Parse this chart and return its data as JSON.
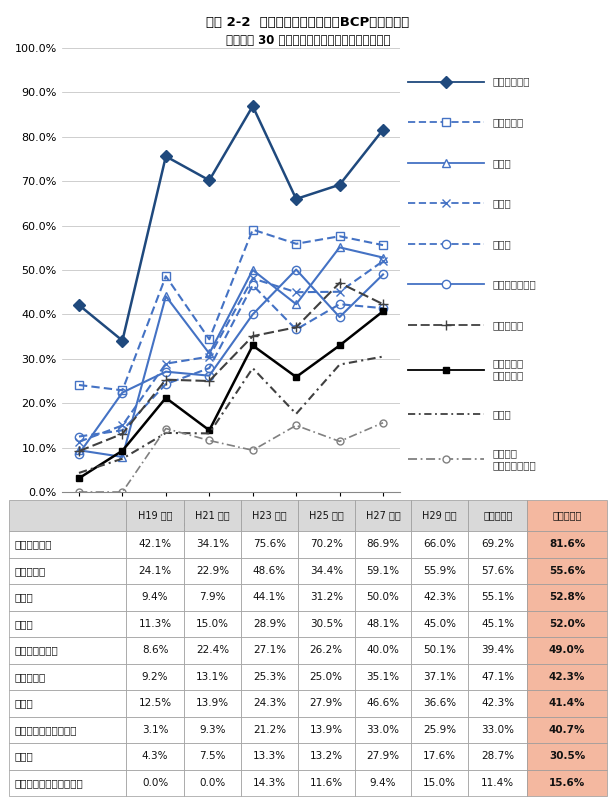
{
  "title1": "図表 2-2  業種別事業継続計画（BCP）策定状況",
  "title2": "（回答数 30 社以上で連続性のある業種を表示）",
  "x_labels": [
    "H19年度",
    "H21年度",
    "H23年度",
    "H25年度",
    "H27年度",
    "H29年度",
    "令和元年度",
    "令和３年度"
  ],
  "series": [
    {
      "name": "金融・保険業",
      "values": [
        42.1,
        34.1,
        75.6,
        70.2,
        86.9,
        66.0,
        69.2,
        81.6
      ],
      "color": "#1F497D",
      "linestyle": "-",
      "marker": "D",
      "markersize": 6,
      "linewidth": 1.8,
      "fillstyle": "full"
    },
    {
      "name": "情報通信業",
      "values": [
        24.1,
        22.9,
        48.6,
        34.4,
        59.1,
        55.9,
        57.6,
        55.6
      ],
      "color": "#4472C4",
      "linestyle": "--",
      "marker": "s",
      "markersize": 6,
      "linewidth": 1.5,
      "fillstyle": "none"
    },
    {
      "name": "建設業",
      "values": [
        9.4,
        7.9,
        44.1,
        31.2,
        50.0,
        42.3,
        55.1,
        52.8
      ],
      "color": "#4472C4",
      "linestyle": "-",
      "marker": "^",
      "markersize": 6,
      "linewidth": 1.5,
      "fillstyle": "none"
    },
    {
      "name": "製造業",
      "values": [
        11.3,
        15.0,
        28.9,
        30.5,
        48.1,
        45.0,
        45.1,
        52.0
      ],
      "color": "#4472C4",
      "linestyle": "--",
      "marker": "x",
      "markersize": 6,
      "linewidth": 1.5,
      "fillstyle": "full"
    },
    {
      "name": "卸売業",
      "values": [
        12.5,
        13.9,
        24.3,
        27.9,
        46.6,
        36.6,
        42.3,
        41.4
      ],
      "color": "#4472C4",
      "linestyle": "--",
      "marker": "o",
      "markersize": 6,
      "linewidth": 1.5,
      "fillstyle": "none"
    },
    {
      "name": "運輸業・郵便業",
      "values": [
        8.6,
        22.4,
        27.1,
        26.2,
        40.0,
        50.1,
        39.4,
        49.0
      ],
      "color": "#4472C4",
      "linestyle": "-",
      "marker": "o",
      "markersize": 6,
      "linewidth": 1.5,
      "fillstyle": "none"
    },
    {
      "name": "サービス業",
      "values": [
        9.2,
        13.1,
        25.3,
        25.0,
        35.1,
        37.1,
        47.1,
        42.3
      ],
      "color": "#404040",
      "linestyle": "--",
      "marker": "+",
      "markersize": 7,
      "linewidth": 1.5,
      "fillstyle": "full"
    },
    {
      "name": "不動産業、\n物品賃貸業",
      "values": [
        3.1,
        9.3,
        21.2,
        13.9,
        33.0,
        25.9,
        33.0,
        40.7
      ],
      "color": "#000000",
      "linestyle": "-",
      "marker": "s",
      "markersize": 4,
      "linewidth": 1.8,
      "fillstyle": "full"
    },
    {
      "name": "小売業",
      "values": [
        4.3,
        7.5,
        13.3,
        13.2,
        27.9,
        17.6,
        28.7,
        30.5
      ],
      "color": "#404040",
      "linestyle": "-.",
      "marker": "None",
      "markersize": 0,
      "linewidth": 1.5,
      "fillstyle": "full"
    },
    {
      "name": "宿泊業、\n飲食サービス業",
      "values": [
        0.0,
        0.0,
        14.3,
        11.6,
        9.4,
        15.0,
        11.4,
        15.6
      ],
      "color": "#808080",
      "linestyle": "--",
      "marker": "o",
      "markersize": 5,
      "linewidth": 1.2,
      "fillstyle": "none"
    }
  ],
  "legend_names": [
    "金融・保険業",
    "情報通信業",
    "建設業",
    "製造業",
    "卸売業",
    "運輸業・郵便業",
    "サービス業",
    "不動産業、\n物品賃貸業",
    "小売業",
    "宿泊業、\n飲食サービス業"
  ],
  "table_headers": [
    "",
    "H19 年度",
    "H21 年度",
    "H23 年度",
    "H25 年度",
    "H27 年度",
    "H29 年度",
    "令和元年度",
    "令和３年度"
  ],
  "table_rows": [
    [
      "金融・保険業",
      "42.1%",
      "34.1%",
      "75.6%",
      "70.2%",
      "86.9%",
      "66.0%",
      "69.2%",
      "81.6%"
    ],
    [
      "情報通信業",
      "24.1%",
      "22.9%",
      "48.6%",
      "34.4%",
      "59.1%",
      "55.9%",
      "57.6%",
      "55.6%"
    ],
    [
      "建設業",
      "9.4%",
      "7.9%",
      "44.1%",
      "31.2%",
      "50.0%",
      "42.3%",
      "55.1%",
      "52.8%"
    ],
    [
      "製造業",
      "11.3%",
      "15.0%",
      "28.9%",
      "30.5%",
      "48.1%",
      "45.0%",
      "45.1%",
      "52.0%"
    ],
    [
      "運輸業・郵便業",
      "8.6%",
      "22.4%",
      "27.1%",
      "26.2%",
      "40.0%",
      "50.1%",
      "39.4%",
      "49.0%"
    ],
    [
      "サービス業",
      "9.2%",
      "13.1%",
      "25.3%",
      "25.0%",
      "35.1%",
      "37.1%",
      "47.1%",
      "42.3%"
    ],
    [
      "卸売業",
      "12.5%",
      "13.9%",
      "24.3%",
      "27.9%",
      "46.6%",
      "36.6%",
      "42.3%",
      "41.4%"
    ],
    [
      "不動産業、物品賃貸業",
      "3.1%",
      "9.3%",
      "21.2%",
      "13.9%",
      "33.0%",
      "25.9%",
      "33.0%",
      "40.7%"
    ],
    [
      "小売業",
      "4.3%",
      "7.5%",
      "13.3%",
      "13.2%",
      "27.9%",
      "17.6%",
      "28.7%",
      "30.5%"
    ],
    [
      "宿泊業、飲食サービス業",
      "0.0%",
      "0.0%",
      "14.3%",
      "11.6%",
      "9.4%",
      "15.0%",
      "11.4%",
      "15.6%"
    ]
  ],
  "last_col_bg": "#F4B8A0",
  "header_bg": "#D9D9D9",
  "ylim": [
    0,
    100
  ],
  "yticks": [
    0,
    10,
    20,
    30,
    40,
    50,
    60,
    70,
    80,
    90,
    100
  ]
}
